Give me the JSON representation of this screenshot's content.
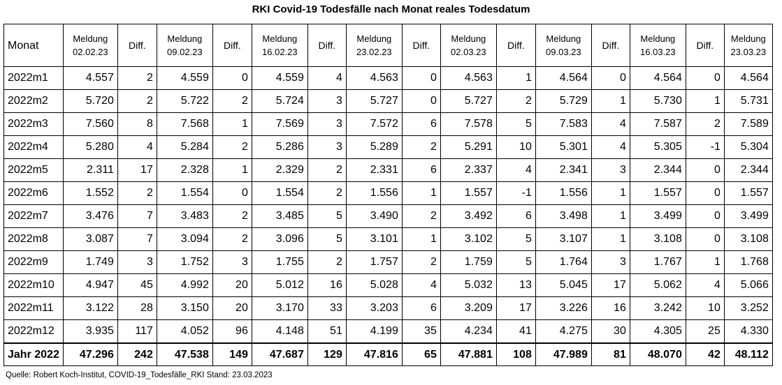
{
  "title": "RKI Covid-19 Todesfälle nach Monat reales Todesdatum",
  "header": {
    "monat": "Monat",
    "diff": "Diff.",
    "meldungen": [
      {
        "label": "Meldung",
        "date": "02.02.23"
      },
      {
        "label": "Meldung",
        "date": "09.02.23"
      },
      {
        "label": "Meldung",
        "date": "16.02.23"
      },
      {
        "label": "Meldung",
        "date": "23.02.23"
      },
      {
        "label": "Meldung",
        "date": "02.03.23"
      },
      {
        "label": "Meldung",
        "date": "09.03.23"
      },
      {
        "label": "Meldung",
        "date": "16.03.23"
      },
      {
        "label": "Meldung",
        "date": "23.03.23"
      }
    ]
  },
  "rows": [
    {
      "label": "2022m1",
      "cells": [
        "4.557",
        "2",
        "4.559",
        "0",
        "4.559",
        "4",
        "4.563",
        "0",
        "4.563",
        "1",
        "4.564",
        "0",
        "4.564",
        "0",
        "4.564"
      ]
    },
    {
      "label": "2022m2",
      "cells": [
        "5.720",
        "2",
        "5.722",
        "2",
        "5.724",
        "3",
        "5.727",
        "0",
        "5.727",
        "2",
        "5.729",
        "1",
        "5.730",
        "1",
        "5.731"
      ]
    },
    {
      "label": "2022m3",
      "cells": [
        "7.560",
        "8",
        "7.568",
        "1",
        "7.569",
        "3",
        "7.572",
        "6",
        "7.578",
        "5",
        "7.583",
        "4",
        "7.587",
        "2",
        "7.589"
      ]
    },
    {
      "label": "2022m4",
      "cells": [
        "5.280",
        "4",
        "5.284",
        "2",
        "5.286",
        "3",
        "5.289",
        "2",
        "5.291",
        "10",
        "5.301",
        "4",
        "5.305",
        "-1",
        "5.304"
      ]
    },
    {
      "label": "2022m5",
      "cells": [
        "2.311",
        "17",
        "2.328",
        "1",
        "2.329",
        "2",
        "2.331",
        "6",
        "2.337",
        "4",
        "2.341",
        "3",
        "2.344",
        "0",
        "2.344"
      ]
    },
    {
      "label": "2022m6",
      "cells": [
        "1.552",
        "2",
        "1.554",
        "0",
        "1.554",
        "2",
        "1.556",
        "1",
        "1.557",
        "-1",
        "1.556",
        "1",
        "1.557",
        "0",
        "1.557"
      ]
    },
    {
      "label": "2022m7",
      "cells": [
        "3.476",
        "7",
        "3.483",
        "2",
        "3.485",
        "5",
        "3.490",
        "2",
        "3.492",
        "6",
        "3.498",
        "1",
        "3.499",
        "0",
        "3.499"
      ]
    },
    {
      "label": "2022m8",
      "cells": [
        "3.087",
        "7",
        "3.094",
        "2",
        "3.096",
        "5",
        "3.101",
        "1",
        "3.102",
        "5",
        "3.107",
        "1",
        "3.108",
        "0",
        "3.108"
      ]
    },
    {
      "label": "2022m9",
      "cells": [
        "1.749",
        "3",
        "1.752",
        "3",
        "1.755",
        "2",
        "1.757",
        "2",
        "1.759",
        "5",
        "1.764",
        "3",
        "1.767",
        "1",
        "1.768"
      ]
    },
    {
      "label": "2022m10",
      "cells": [
        "4.947",
        "45",
        "4.992",
        "20",
        "5.012",
        "16",
        "5.028",
        "4",
        "5.032",
        "13",
        "5.045",
        "17",
        "5.062",
        "4",
        "5.066"
      ]
    },
    {
      "label": "2022m11",
      "cells": [
        "3.122",
        "28",
        "3.150",
        "20",
        "3.170",
        "33",
        "3.203",
        "6",
        "3.209",
        "17",
        "3.226",
        "16",
        "3.242",
        "10",
        "3.252"
      ]
    },
    {
      "label": "2022m12",
      "cells": [
        "3.935",
        "117",
        "4.052",
        "96",
        "4.148",
        "51",
        "4.199",
        "35",
        "4.234",
        "41",
        "4.275",
        "30",
        "4.305",
        "25",
        "4.330"
      ]
    }
  ],
  "total": {
    "label": "Jahr 2022",
    "cells": [
      "47.296",
      "242",
      "47.538",
      "149",
      "47.687",
      "129",
      "47.816",
      "65",
      "47.881",
      "108",
      "47.989",
      "81",
      "48.070",
      "42",
      "48.112"
    ]
  },
  "source": "Quelle: Robert Koch-Institut, COVID-19_Todesfälle_RKI Stand: 23.03.2023"
}
